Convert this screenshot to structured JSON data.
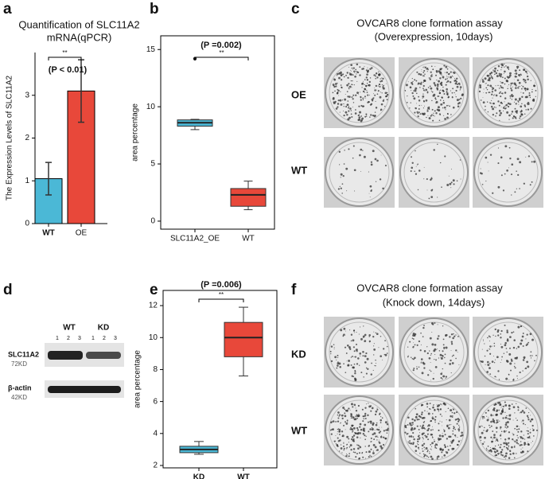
{
  "chart_data": [
    {
      "type": "bar",
      "panel": "a",
      "title": [
        "Quantification of SLC11A2",
        "mRNA(qPCR)"
      ],
      "ylabel": "The Expression Levels of SLC11A2",
      "categories": [
        "WT",
        "OE"
      ],
      "values": [
        1.05,
        3.1
      ],
      "errors": [
        0.38,
        0.73
      ],
      "colors": [
        "#4bb8d6",
        "#e8483a"
      ],
      "ylim": [
        0,
        4
      ],
      "yticks": [
        0,
        1,
        2,
        3
      ],
      "annotations": [
        "(P < 0.01)",
        "**"
      ]
    },
    {
      "type": "box",
      "panel": "b",
      "ylabel": "area percentage",
      "categories": [
        "SLC11A2_OE",
        "WT"
      ],
      "boxes": [
        {
          "whislo": 8.0,
          "q1": 8.3,
          "median": 8.6,
          "q3": 8.85,
          "whishi": 8.9,
          "fliers": [
            14.2
          ]
        },
        {
          "whislo": 1.0,
          "q1": 1.3,
          "median": 2.3,
          "q3": 2.85,
          "whishi": 3.5
        }
      ],
      "colors": [
        "#4bb8d6",
        "#e8483a"
      ],
      "ylim": [
        -0.7,
        16.2
      ],
      "yticks": [
        0,
        5,
        10,
        15
      ],
      "annotations": [
        "(P =0.002)",
        "**"
      ]
    },
    {
      "type": "box",
      "panel": "e",
      "ylabel": "area percentage",
      "categories": [
        "KD",
        "WT"
      ],
      "boxes": [
        {
          "whislo": 2.7,
          "q1": 2.8,
          "median": 3.0,
          "q3": 3.2,
          "whishi": 3.5
        },
        {
          "whislo": 7.6,
          "q1": 8.8,
          "median": 10.0,
          "q3": 10.95,
          "whishi": 11.9
        }
      ],
      "colors": [
        "#4bb8d6",
        "#e8483a"
      ],
      "ylim": [
        1.85,
        12.95
      ],
      "yticks": [
        2,
        4,
        6,
        8,
        10,
        12
      ],
      "annotations": [
        "(P =0.006)",
        "**"
      ]
    }
  ],
  "panel_c": {
    "panel": "c",
    "title": [
      "OVCAR8 clone formation assay",
      "(Overexpression, 10days)"
    ],
    "rows": [
      "OE",
      "WT"
    ]
  },
  "panel_d": {
    "panel": "d",
    "groups": [
      "WT",
      "KD"
    ],
    "lanes": [
      "1",
      "2",
      "3",
      "1",
      "2",
      "3"
    ],
    "proteins": [
      {
        "name": "SLC11A2",
        "size": "72KD"
      },
      {
        "name": "β-actin",
        "size": "42KD"
      }
    ]
  },
  "panel_f": {
    "panel": "f",
    "title": [
      "OVCAR8 clone formation assay",
      "(Knock down, 14days)"
    ],
    "rows": [
      "KD",
      "WT"
    ]
  }
}
